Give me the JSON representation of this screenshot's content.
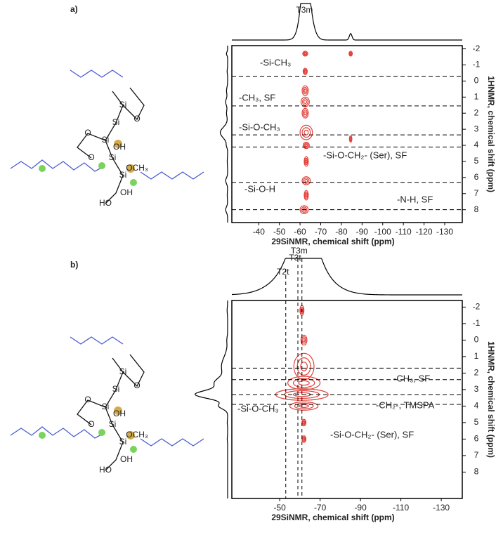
{
  "chart_data": [
    {
      "type": "contour",
      "panel": "a)",
      "xlabel": "29SiNMR, chemical shift (ppm)",
      "ylabel": "1HNMR, chemical shift (ppm)",
      "xlim": [
        -27,
        -138.5
      ],
      "ylim": [
        -2.2,
        8.8
      ],
      "xticks": [
        -40,
        -50,
        -60,
        -70,
        -80,
        -90,
        -100,
        -110,
        -120,
        -130
      ],
      "yticks": [
        -2,
        -1,
        0,
        1,
        2,
        3,
        4,
        5,
        6,
        7,
        8
      ],
      "markers": [
        {
          "label": "T3m",
          "x": -63.5
        }
      ],
      "marker_lines": false,
      "hlines": [
        -0.3,
        1.55,
        3.35,
        4.1,
        6.3,
        8.0
      ],
      "color": "#e2403a",
      "peaks": [
        {
          "x": -62.5,
          "y": -1.7,
          "wx": 1.2,
          "wy": 0.15,
          "intensity": 0.2
        },
        {
          "x": -84.5,
          "y": -1.7,
          "wx": 0.8,
          "wy": 0.15,
          "intensity": 0.3
        },
        {
          "x": -62.5,
          "y": -0.6,
          "wx": 1,
          "wy": 0.2,
          "intensity": 0.2
        },
        {
          "x": -62.5,
          "y": 0.6,
          "wx": 1.5,
          "wy": 0.3,
          "intensity": 0.3
        },
        {
          "x": -62.5,
          "y": 1.3,
          "wx": 2,
          "wy": 0.3,
          "intensity": 0.4
        },
        {
          "x": -62.5,
          "y": 2.0,
          "wx": 1.5,
          "wy": 0.3,
          "intensity": 0.3
        },
        {
          "x": -63,
          "y": 3.2,
          "wx": 3,
          "wy": 0.45,
          "intensity": 1
        },
        {
          "x": -84.5,
          "y": 3.6,
          "wx": 0.6,
          "wy": 0.2,
          "intensity": 0.2
        },
        {
          "x": -63,
          "y": 4.0,
          "wx": 1.5,
          "wy": 0.2,
          "intensity": 0.3
        },
        {
          "x": -63,
          "y": 5.0,
          "wx": 1,
          "wy": 0.3,
          "intensity": 0.15
        },
        {
          "x": -63,
          "y": 6.2,
          "wx": 2,
          "wy": 0.25,
          "intensity": 0.4
        },
        {
          "x": -63,
          "y": 7.1,
          "wx": 1,
          "wy": 0.3,
          "intensity": 0.15
        },
        {
          "x": -62,
          "y": 8.0,
          "wx": 2,
          "wy": 0.25,
          "intensity": 0.4
        }
      ],
      "annotations": [
        {
          "text": "-Si-CH₃",
          "color": "#c8961e"
        },
        {
          "text": "-CH₃, SF",
          "color": "#6ccf3f"
        },
        {
          "text": "-Si-O-CH₃",
          "color": "#c8961e"
        },
        {
          "text": "-Si-O-CH₂- (Ser), SF",
          "color": "#6ccf3f"
        },
        {
          "text": "-Si-O-H",
          "color": "#c8961e"
        },
        {
          "text": "-N-H, SF",
          "color": "#6ccf3f"
        }
      ],
      "structure_labels": [
        "Si",
        "Si",
        "Si",
        "Si",
        "Si",
        "OH",
        "OCH₃",
        "O",
        "O",
        "OH",
        "HO",
        "O"
      ]
    },
    {
      "type": "contour",
      "panel": "b)",
      "xlabel": "29SiNMR, chemical shift (ppm)",
      "ylabel": "1HNMR, chemical shift (ppm)",
      "xlim": [
        -26.3,
        -140.4
      ],
      "ylim": [
        -2.4,
        9.6
      ],
      "xticks": [
        -50,
        -70,
        -90,
        -110,
        -130
      ],
      "yticks": [
        -2,
        -1,
        0,
        1,
        2,
        3,
        4,
        5,
        6,
        7,
        8
      ],
      "markers": [
        {
          "label": "T2t",
          "x": -53
        },
        {
          "label": "T3t",
          "x": -59
        },
        {
          "label": "T3m",
          "x": -61
        }
      ],
      "marker_lines": true,
      "hlines": [
        1.7,
        2.4,
        3.3,
        3.9
      ],
      "color": "#e2403a",
      "peaks": [
        {
          "x": -61,
          "y": -1.8,
          "wx": 1,
          "wy": 0.3,
          "intensity": 0.2
        },
        {
          "x": -62,
          "y": 0,
          "wx": 1.5,
          "wy": 0.3,
          "intensity": 0.2
        },
        {
          "x": -62,
          "y": 1.6,
          "wx": 5,
          "wy": 0.8,
          "intensity": 0.5
        },
        {
          "x": -62,
          "y": 2.6,
          "wx": 8,
          "wy": 0.4,
          "intensity": 0.6
        },
        {
          "x": -61,
          "y": 3.3,
          "wx": 13,
          "wy": 0.35,
          "intensity": 1
        },
        {
          "x": -62,
          "y": 4.0,
          "wx": 7,
          "wy": 0.25,
          "intensity": 0.5
        },
        {
          "x": -62,
          "y": 5.0,
          "wx": 1,
          "wy": 0.2,
          "intensity": 0.15
        },
        {
          "x": -62,
          "y": 6.0,
          "wx": 1,
          "wy": 0.2,
          "intensity": 0.15
        }
      ],
      "annotations": [
        {
          "text": "-CH₃, SF",
          "color": "#6ccf3f"
        },
        {
          "text": "-CH₂-, TMSPA",
          "color": "#c8961e"
        },
        {
          "text": "-Si-O-CH₃",
          "color": "#c8961e"
        },
        {
          "text": "-Si-O-CH₂- (Ser), SF",
          "color": "#6ccf3f"
        }
      ],
      "structure_labels": [
        "Si",
        "Si",
        "Si",
        "Si",
        "Si",
        "OH",
        "OCH₃",
        "O",
        "O",
        "OH",
        "HO",
        "O"
      ]
    }
  ]
}
